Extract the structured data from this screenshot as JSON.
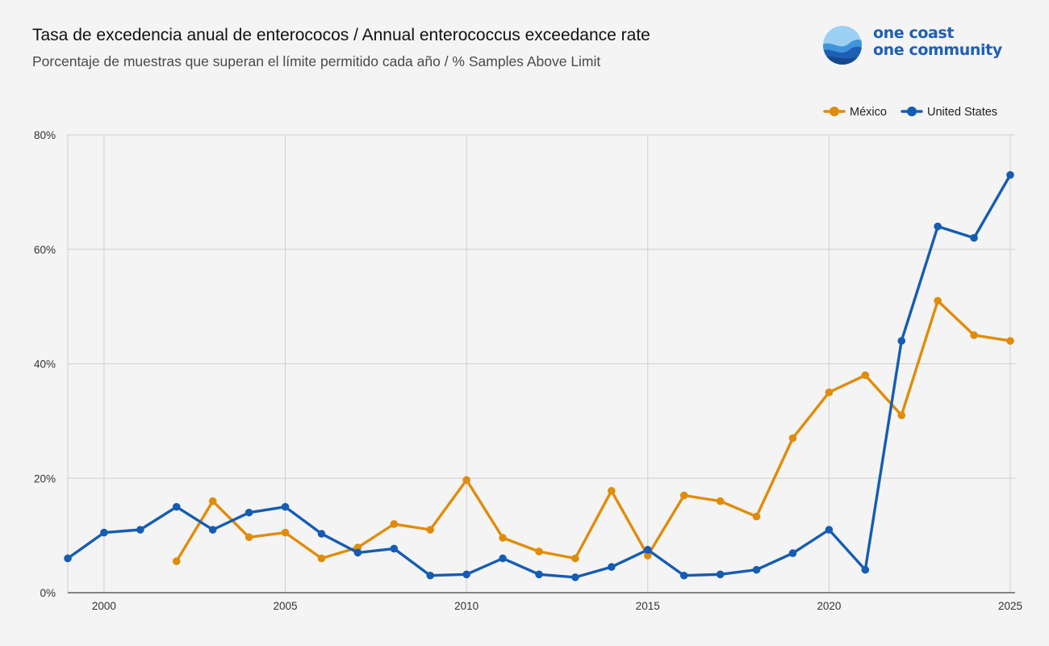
{
  "header": {
    "title": "Tasa de excedencia anual de enterococos / Annual enterococcus exceedance rate",
    "subtitle": "Porcentaje de muestras que superan el límite permitido cada año / % Samples Above Limit"
  },
  "logo": {
    "line1": "one coast",
    "line2": "one community",
    "color": "#1e5fb4"
  },
  "chart_data": {
    "type": "line",
    "title": "Tasa de excedencia anual de enterococos / Annual enterococcus exceedance rate",
    "subtitle": "Porcentaje de muestras que superan el límite permitido cada año / % Samples Above Limit",
    "xlabel": "",
    "ylabel": "",
    "xlim": [
      1999,
      2025
    ],
    "ylim": [
      0,
      80
    ],
    "x_ticks": [
      2000,
      2005,
      2010,
      2015,
      2020,
      2025
    ],
    "y_ticks": [
      0,
      20,
      40,
      60,
      80
    ],
    "y_tick_labels": [
      "0%",
      "20%",
      "40%",
      "60%",
      "80%"
    ],
    "grid": true,
    "legend_position": "top-right",
    "series": [
      {
        "name": "México",
        "color": "#e08c0b",
        "x": [
          2002,
          2003,
          2004,
          2005,
          2006,
          2007,
          2008,
          2009,
          2010,
          2011,
          2012,
          2013,
          2014,
          2015,
          2016,
          2017,
          2018,
          2019,
          2020,
          2021,
          2022,
          2023,
          2024,
          2025
        ],
        "y": [
          5.5,
          16,
          9.7,
          10.5,
          6,
          7.9,
          12,
          11,
          19.7,
          9.6,
          7.2,
          6,
          17.8,
          6.5,
          17,
          16,
          13.3,
          27,
          35,
          38,
          31,
          51,
          45,
          44
        ]
      },
      {
        "name": "United States",
        "color": "#155db2",
        "x": [
          1999,
          2000,
          2001,
          2002,
          2003,
          2004,
          2005,
          2006,
          2007,
          2008,
          2009,
          2010,
          2011,
          2012,
          2013,
          2014,
          2015,
          2016,
          2017,
          2018,
          2019,
          2020,
          2021,
          2022,
          2023,
          2024,
          2025
        ],
        "y": [
          6,
          10.5,
          11,
          15,
          11,
          14,
          15,
          10.3,
          7,
          7.7,
          3,
          3.2,
          6,
          3.2,
          2.7,
          4.5,
          7.5,
          3,
          3.2,
          4,
          6.9,
          11,
          4,
          44,
          64,
          62,
          73
        ]
      }
    ]
  }
}
